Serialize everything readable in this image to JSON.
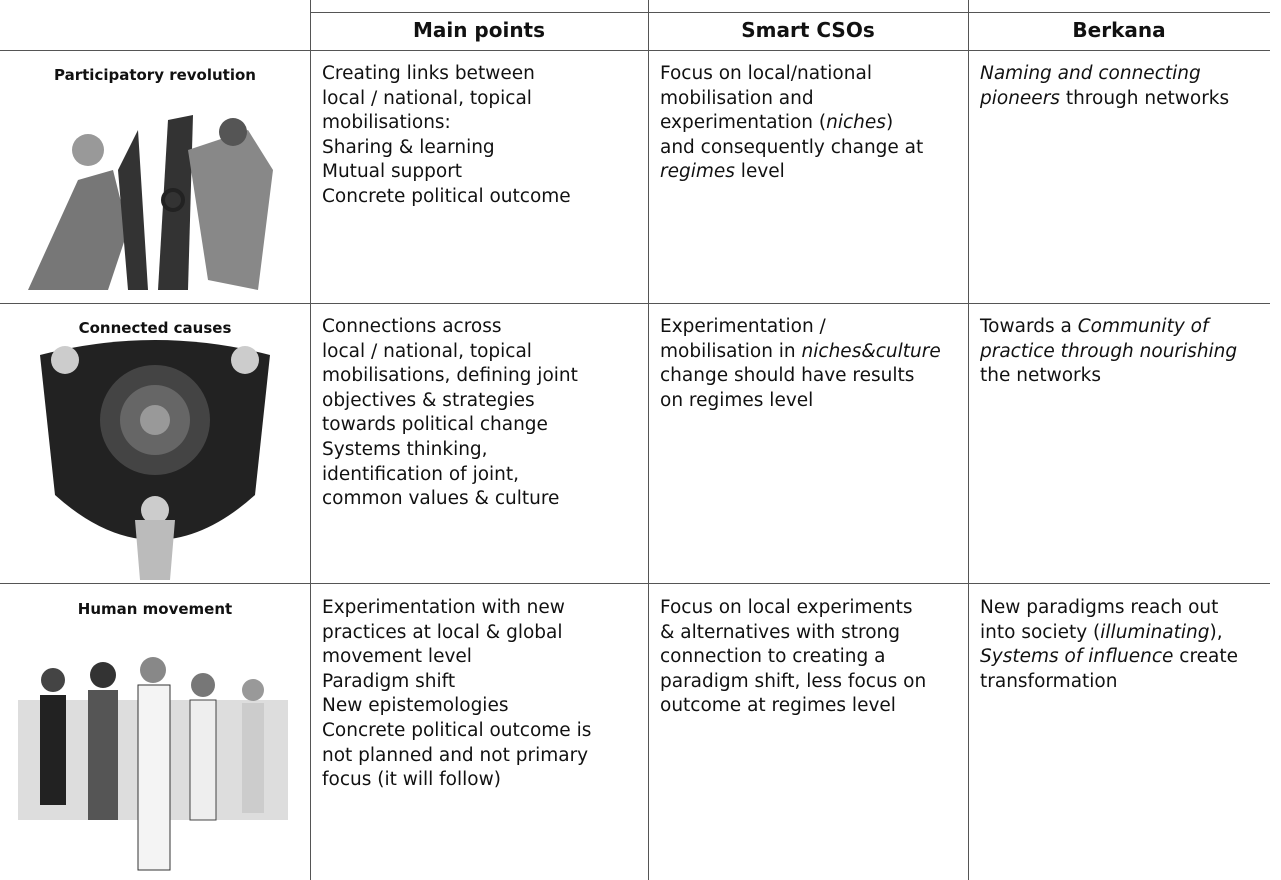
{
  "table": {
    "header": [
      "Main points",
      "Smart CSOs",
      "Berkana"
    ],
    "rows": [
      {
        "label": "Participatory revolution",
        "cells": [
          [
            "Creating links between",
            "local / national, topical",
            "mobilisations:",
            "Sharing & learning",
            "Mutual support",
            "Concrete political outcome"
          ],
          [
            "Focus on local/national",
            "mobilisation and",
            [
              "experimentation (",
              {
                "text": "niches",
                "italic": true
              },
              ")"
            ],
            "and consequently change at",
            [
              {
                "text": "regimes",
                "italic": true
              },
              " level"
            ]
          ],
          [
            [
              {
                "text": "Naming and connecting",
                "italic": true
              }
            ],
            [
              {
                "text": "pioneers",
                "italic": true
              },
              " through networks"
            ]
          ]
        ]
      },
      {
        "label": "Connected causes",
        "cells": [
          [
            "Connections across",
            "local / national, topical",
            "mobilisations, defining joint",
            "objectives & strategies",
            "towards political change",
            "Systems thinking,",
            "identification of joint,",
            "common values & culture"
          ],
          [
            "Experimentation /",
            [
              "mobilisation in ",
              {
                "text": "niches&culture",
                "italic": true
              }
            ],
            "change should have results",
            "on regimes level"
          ],
          [
            [
              "Towards a ",
              {
                "text": "Community of",
                "italic": true
              }
            ],
            [
              {
                "text": "practice through nourishing",
                "italic": true
              }
            ],
            "the networks"
          ]
        ]
      },
      {
        "label": "Human movement",
        "cells": [
          [
            "Experimentation with new",
            "practices at local & global",
            "movement level",
            "Paradigm shift",
            "New epistemologies",
            "Concrete political outcome is",
            "not planned and not primary",
            "focus (it will follow)"
          ],
          [
            "Focus on local experiments",
            "& alternatives with strong",
            "connection to creating a",
            "paradigm shift, less focus on",
            "outcome at regimes level"
          ],
          [
            "New paradigms reach out",
            [
              "into society (",
              {
                "text": "illuminating",
                "italic": true
              },
              "),"
            ],
            [
              {
                "text": "Systems of influence",
                "italic": true
              },
              " create"
            ],
            "transformation"
          ]
        ]
      }
    ]
  }
}
